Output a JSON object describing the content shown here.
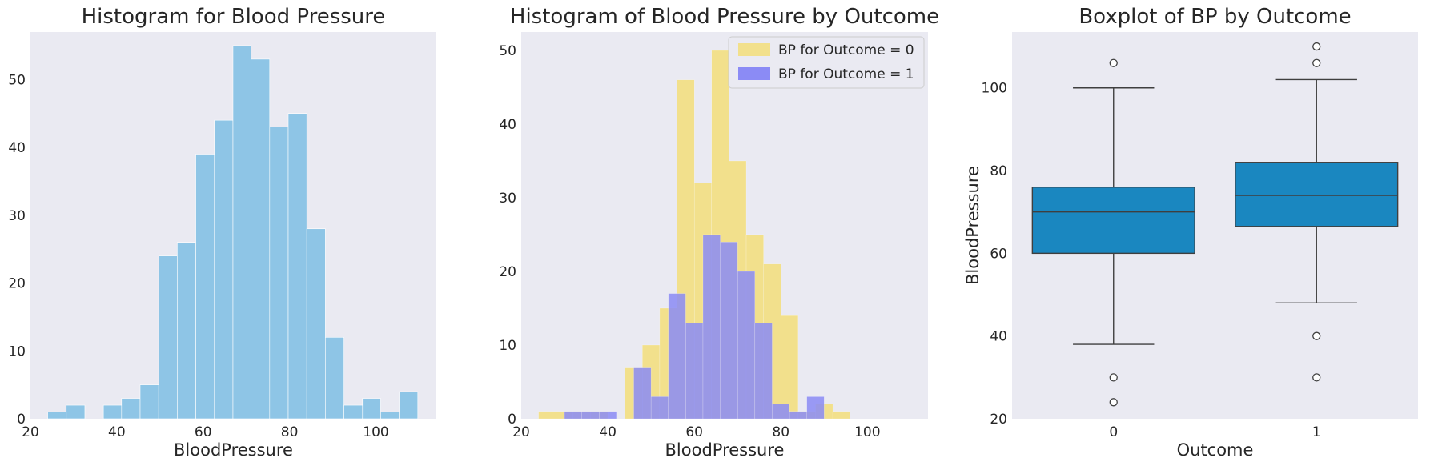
{
  "chart_data": [
    {
      "type": "bar",
      "title": "Histogram for Blood Pressure",
      "xlabel": "BloodPressure",
      "ylabel": "",
      "xlim": [
        20,
        114
      ],
      "ylim": [
        0,
        57
      ],
      "xticks": [
        20,
        40,
        60,
        80,
        100
      ],
      "yticks": [
        0,
        10,
        20,
        30,
        40,
        50
      ],
      "grid": false,
      "color": "#8ec5e6",
      "bins": [
        {
          "x0": 24,
          "x1": 28.3,
          "count": 1
        },
        {
          "x0": 28.3,
          "x1": 32.6,
          "count": 2
        },
        {
          "x0": 32.6,
          "x1": 36.9,
          "count": 0
        },
        {
          "x0": 36.9,
          "x1": 41.1,
          "count": 2
        },
        {
          "x0": 41.1,
          "x1": 45.4,
          "count": 3
        },
        {
          "x0": 45.4,
          "x1": 49.7,
          "count": 5
        },
        {
          "x0": 49.7,
          "x1": 54.0,
          "count": 24
        },
        {
          "x0": 54.0,
          "x1": 58.3,
          "count": 26
        },
        {
          "x0": 58.3,
          "x1": 62.6,
          "count": 39
        },
        {
          "x0": 62.6,
          "x1": 66.9,
          "count": 44
        },
        {
          "x0": 66.9,
          "x1": 71.1,
          "count": 55
        },
        {
          "x0": 71.1,
          "x1": 75.4,
          "count": 53
        },
        {
          "x0": 75.4,
          "x1": 79.7,
          "count": 43
        },
        {
          "x0": 79.7,
          "x1": 84.0,
          "count": 45
        },
        {
          "x0": 84.0,
          "x1": 88.3,
          "count": 28
        },
        {
          "x0": 88.3,
          "x1": 92.6,
          "count": 12
        },
        {
          "x0": 92.6,
          "x1": 96.9,
          "count": 2
        },
        {
          "x0": 96.9,
          "x1": 101.1,
          "count": 3
        },
        {
          "x0": 101.1,
          "x1": 105.4,
          "count": 1
        },
        {
          "x0": 105.4,
          "x1": 109.7,
          "count": 4
        }
      ]
    },
    {
      "type": "bar",
      "title": "Histogram of Blood Pressure by Outcome",
      "xlabel": "BloodPressure",
      "ylabel": "",
      "xlim": [
        20,
        114
      ],
      "ylim": [
        0,
        52.5
      ],
      "xticks": [
        20,
        40,
        60,
        80,
        100
      ],
      "yticks": [
        0,
        10,
        20,
        30,
        40,
        50
      ],
      "grid": false,
      "legend": "top-right",
      "series": [
        {
          "name": "BP for Outcome = 0",
          "color": "#f2e08c",
          "bins": [
            {
              "x0": 24,
              "x1": 28,
              "count": 1
            },
            {
              "x0": 28,
              "x1": 32,
              "count": 1
            },
            {
              "x0": 32,
              "x1": 36,
              "count": 1
            },
            {
              "x0": 36,
              "x1": 40,
              "count": 1
            },
            {
              "x0": 40,
              "x1": 44,
              "count": 0
            },
            {
              "x0": 44,
              "x1": 48,
              "count": 7
            },
            {
              "x0": 48,
              "x1": 52,
              "count": 10
            },
            {
              "x0": 52,
              "x1": 56,
              "count": 15
            },
            {
              "x0": 56,
              "x1": 60,
              "count": 46
            },
            {
              "x0": 60,
              "x1": 64,
              "count": 32
            },
            {
              "x0": 64,
              "x1": 68,
              "count": 50
            },
            {
              "x0": 68,
              "x1": 72,
              "count": 35
            },
            {
              "x0": 72,
              "x1": 76,
              "count": 25
            },
            {
              "x0": 76,
              "x1": 80,
              "count": 21
            },
            {
              "x0": 80,
              "x1": 84,
              "count": 14
            },
            {
              "x0": 84,
              "x1": 88,
              "count": 1
            },
            {
              "x0": 88,
              "x1": 92,
              "count": 2
            },
            {
              "x0": 92,
              "x1": 96,
              "count": 1
            }
          ]
        },
        {
          "name": "BP for Outcome = 1",
          "color": "#8b8bf5",
          "bins": [
            {
              "x0": 30,
              "x1": 34,
              "count": 1
            },
            {
              "x0": 34,
              "x1": 38,
              "count": 1
            },
            {
              "x0": 38,
              "x1": 42,
              "count": 1
            },
            {
              "x0": 42,
              "x1": 46,
              "count": 0
            },
            {
              "x0": 46,
              "x1": 50,
              "count": 7
            },
            {
              "x0": 50,
              "x1": 54,
              "count": 3
            },
            {
              "x0": 54,
              "x1": 58,
              "count": 17
            },
            {
              "x0": 58,
              "x1": 62,
              "count": 13
            },
            {
              "x0": 62,
              "x1": 66,
              "count": 25
            },
            {
              "x0": 66,
              "x1": 70,
              "count": 24
            },
            {
              "x0": 70,
              "x1": 74,
              "count": 20
            },
            {
              "x0": 74,
              "x1": 78,
              "count": 13
            },
            {
              "x0": 78,
              "x1": 82,
              "count": 2
            },
            {
              "x0": 82,
              "x1": 86,
              "count": 1
            },
            {
              "x0": 86,
              "x1": 90,
              "count": 3
            }
          ]
        }
      ]
    },
    {
      "type": "box",
      "title": "Boxplot of BP by Outcome",
      "xlabel": "Outcome",
      "ylabel": "BloodPressure",
      "ylim": [
        20,
        113.5
      ],
      "yticks": [
        20,
        40,
        60,
        80,
        100
      ],
      "grid": false,
      "color": "#1a87c0",
      "boxes": [
        {
          "category": "0",
          "whislo": 38,
          "q1": 60,
          "median": 70,
          "q3": 76,
          "whishi": 100,
          "fliers": [
            106,
            30,
            24
          ]
        },
        {
          "category": "1",
          "whislo": 48,
          "q1": 66.5,
          "median": 74,
          "q3": 82,
          "whishi": 102,
          "fliers": [
            110,
            106,
            40,
            30
          ]
        }
      ]
    }
  ]
}
